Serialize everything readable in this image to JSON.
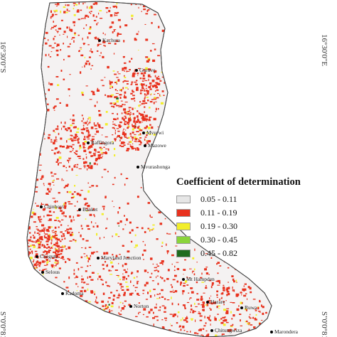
{
  "map": {
    "latitude_labels": {
      "left_top": "16°30'0\"S",
      "right_top": "16°30'0\"E",
      "left_bottom": "S\"0'0°81",
      "right_bottom": "S\"0'0°81"
    },
    "towns": [
      {
        "name": "Kachuta"
      },
      {
        "name": "Guruve"
      },
      {
        "name": "Mvurwi"
      },
      {
        "name": "Chinhoyi"
      },
      {
        "name": "Banket"
      },
      {
        "name": "Raffingora"
      },
      {
        "name": "Mazowe"
      },
      {
        "name": "Mvurashonga"
      },
      {
        "name": "Chegutu"
      },
      {
        "name": "Norton"
      },
      {
        "name": "Harare"
      },
      {
        "name": "Ruwa"
      },
      {
        "name": "Chitungwiza"
      },
      {
        "name": "Marondera"
      },
      {
        "name": "Mt Hampden"
      },
      {
        "name": "Kadoma"
      },
      {
        "name": "Selous"
      },
      {
        "name": "Maryland Junction"
      }
    ],
    "colors": {
      "class1": "#e6e6e6",
      "class2": "#e8321e",
      "class3": "#f2ee2a",
      "class4": "#8ad43a",
      "class5": "#1f6b1f",
      "outline": "#444444"
    }
  },
  "legend": {
    "title": "Coefficient of determination",
    "items": [
      {
        "label": "0.05 - 0.11",
        "color": "#e6e6e6"
      },
      {
        "label": "0.11 - 0.19",
        "color": "#e8321e"
      },
      {
        "label": "0.19 - 0.30",
        "color": "#f2ee2a"
      },
      {
        "label": "0.30 - 0.45",
        "color": "#8ad43a"
      },
      {
        "label": "0.45 - 0.82",
        "color": "#1f6b1f"
      }
    ]
  }
}
